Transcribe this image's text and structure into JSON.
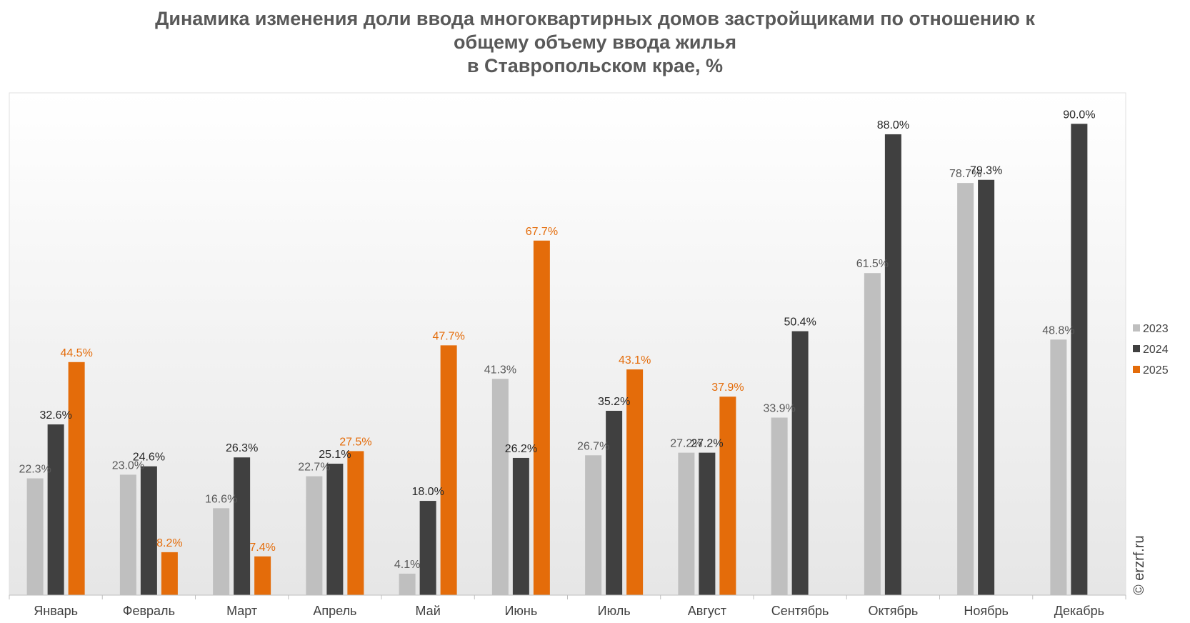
{
  "chart_data": {
    "type": "bar",
    "title_lines": [
      "Динамика изменения доли ввода многоквартирных домов застройщиками по отношению к",
      "общему объему ввода жилья",
      "в Ставропольском крае, %"
    ],
    "categories": [
      "Январь",
      "Февраль",
      "Март",
      "Апрель",
      "Май",
      "Июнь",
      "Июль",
      "Август",
      "Сентябрь",
      "Октябрь",
      "Ноябрь",
      "Декабрь"
    ],
    "series": [
      {
        "name": "2023",
        "color": "#bfbfbf",
        "label_color": "#595959",
        "values": [
          22.3,
          23.0,
          16.6,
          22.7,
          4.1,
          41.3,
          26.7,
          27.2,
          33.9,
          61.5,
          78.7,
          48.8
        ]
      },
      {
        "name": "2024",
        "color": "#404040",
        "label_color": "#262626",
        "values": [
          32.6,
          24.6,
          26.3,
          25.1,
          18.0,
          26.2,
          35.2,
          27.2,
          50.4,
          88.0,
          79.3,
          90.0
        ]
      },
      {
        "name": "2025",
        "color": "#e46c0a",
        "label_color": "#e46c0a",
        "values": [
          44.5,
          8.2,
          7.4,
          27.5,
          47.7,
          67.7,
          43.1,
          37.9,
          null,
          null,
          null,
          null
        ]
      }
    ],
    "value_suffix": "%",
    "ylim": [
      0,
      100
    ],
    "grid": false,
    "legend_position": "right"
  },
  "watermark": "© erzrf.ru"
}
